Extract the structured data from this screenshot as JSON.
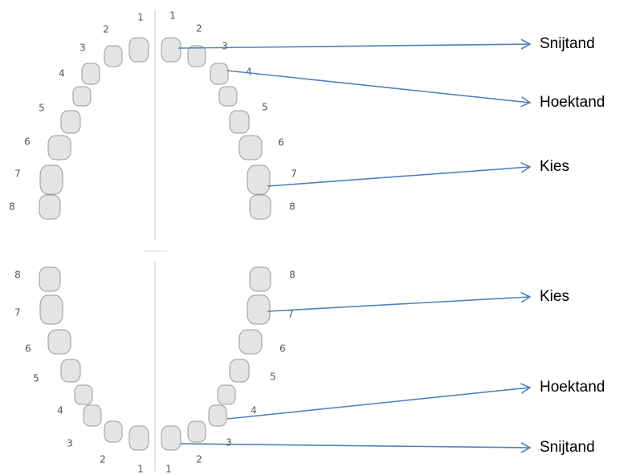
{
  "quadrants": {
    "upper_left": [
      1,
      2,
      3,
      4,
      5,
      6,
      7,
      8
    ],
    "upper_right": [
      1,
      2,
      3,
      4,
      5,
      6,
      7,
      8
    ],
    "lower_left": [
      1,
      2,
      3,
      4,
      5,
      6,
      7,
      8
    ],
    "lower_right": [
      1,
      2,
      3,
      4,
      5,
      6,
      7,
      8
    ]
  },
  "labels": [
    "Snijtand",
    "Hoektand",
    "Kies",
    "Kies",
    "Hoektand",
    "Snijtand"
  ]
}
